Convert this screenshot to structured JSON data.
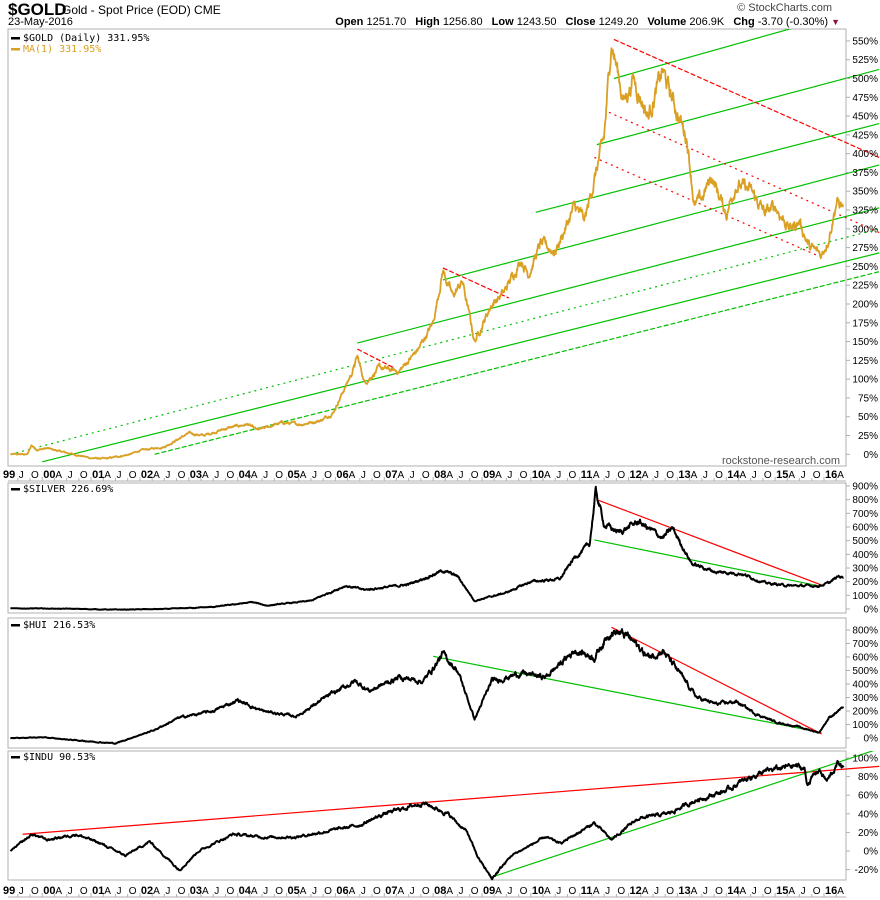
{
  "header": {
    "ticker": "$GOLD",
    "description": "Gold - Spot Price (EOD)",
    "exchange": "CME",
    "date": "23-May-2016",
    "copyright": "© StockCharts.com",
    "open_label": "Open",
    "open": "1251.70",
    "high_label": "High",
    "high": "1256.80",
    "low_label": "Low",
    "low": "1243.50",
    "close_label": "Close",
    "close": "1249.20",
    "volume_label": "Volume",
    "volume": "206.9K",
    "chg_label": "Chg",
    "chg": "-3.70 (-0.30%)",
    "chg_icon": "triangle-down-icon"
  },
  "watermark": "rockstone-research.com",
  "colors": {
    "gold": "#d9a024",
    "black": "#000000",
    "green": "#00c000",
    "red": "#ff0000",
    "border": "#b0b0b0"
  },
  "x_axis": {
    "years": [
      "99",
      "00",
      "01",
      "02",
      "03",
      "04",
      "05",
      "06",
      "07",
      "08",
      "09",
      "10",
      "11",
      "12",
      "13",
      "14",
      "15",
      "16"
    ],
    "first_year": 1999,
    "months": [
      "A",
      "J",
      "O"
    ],
    "range": [
      1999.3,
      2016.45
    ]
  },
  "chart_data": [
    {
      "type": "line",
      "panel": "gold",
      "legend": [
        "$GOLD (Daily) 331.95%",
        "MA(1) 331.95%"
      ],
      "ylabel": "%",
      "ylim": [
        -10,
        570
      ],
      "yticks": [
        "550%",
        "525%",
        "500%",
        "475%",
        "450%",
        "425%",
        "400%",
        "375%",
        "350%",
        "325%",
        "300%",
        "275%",
        "250%",
        "225%",
        "200%",
        "175%",
        "150%",
        "125%",
        "100%",
        "75%",
        "50%",
        "25%",
        "0%"
      ],
      "ytick_values": [
        550,
        525,
        500,
        475,
        450,
        425,
        400,
        375,
        350,
        325,
        300,
        275,
        250,
        225,
        200,
        175,
        150,
        125,
        100,
        75,
        50,
        25,
        0
      ],
      "x": [
        1999.35,
        1999.7,
        1999.78,
        1999.9,
        2000.1,
        2000.5,
        2001.0,
        2001.3,
        2001.8,
        2002.0,
        2002.5,
        2003.0,
        2003.3,
        2003.8,
        2004.2,
        2004.4,
        2004.9,
        2005.3,
        2005.7,
        2005.95,
        2006.35,
        2006.45,
        2006.6,
        2006.9,
        2007.3,
        2007.7,
        2008.0,
        2008.2,
        2008.4,
        2008.6,
        2008.85,
        2009.2,
        2009.45,
        2009.8,
        2009.95,
        2010.2,
        2010.5,
        2010.9,
        2011.1,
        2011.35,
        2011.5,
        2011.65,
        2011.9,
        2012.1,
        2012.4,
        2012.7,
        2012.85,
        2013.2,
        2013.35,
        2013.5,
        2013.7,
        2014.0,
        2014.2,
        2014.5,
        2014.8,
        2015.0,
        2015.3,
        2015.5,
        2015.7,
        2015.95,
        2016.1,
        2016.25,
        2016.4
      ],
      "values": [
        0,
        0,
        12,
        6,
        8,
        2,
        -5,
        -6,
        0,
        5,
        10,
        28,
        25,
        35,
        40,
        32,
        42,
        40,
        45,
        55,
        110,
        130,
        95,
        115,
        110,
        140,
        175,
        245,
        210,
        230,
        150,
        200,
        215,
        260,
        240,
        280,
        270,
        330,
        310,
        380,
        420,
        550,
        470,
        500,
        450,
        510,
        480,
        420,
        330,
        340,
        370,
        320,
        360,
        350,
        320,
        330,
        300,
        310,
        275,
        265,
        290,
        335,
        330
      ]
    },
    {
      "type": "line",
      "panel": "silver",
      "legend": [
        "$SILVER 226.69%"
      ],
      "ylim": [
        -20,
        920
      ],
      "yticks": [
        "900%",
        "800%",
        "700%",
        "600%",
        "500%",
        "400%",
        "300%",
        "200%",
        "100%",
        "0%"
      ],
      "ytick_values": [
        900,
        800,
        700,
        600,
        500,
        400,
        300,
        200,
        100,
        0
      ],
      "x": [
        1999.35,
        2000.5,
        2001.5,
        2002.5,
        2003.5,
        2004.3,
        2004.6,
        2005.5,
        2006.2,
        2006.6,
        2007.5,
        2008.2,
        2008.5,
        2008.85,
        2009.5,
        2010.0,
        2010.6,
        2010.9,
        2011.2,
        2011.33,
        2011.5,
        2011.8,
        2012.2,
        2012.7,
        2012.9,
        2013.3,
        2013.8,
        2014.3,
        2014.8,
        2015.3,
        2015.9,
        2016.1,
        2016.3,
        2016.4
      ],
      "values": [
        5,
        2,
        -5,
        0,
        15,
        50,
        25,
        60,
        170,
        140,
        180,
        280,
        240,
        60,
        120,
        200,
        220,
        380,
        470,
        860,
        620,
        560,
        640,
        520,
        590,
        330,
        270,
        260,
        190,
        170,
        170,
        190,
        240,
        230
      ]
    },
    {
      "type": "line",
      "panel": "hui",
      "legend": [
        "$HUI 216.53%"
      ],
      "ylim": [
        -60,
        850
      ],
      "yticks": [
        "800%",
        "700%",
        "600%",
        "500%",
        "400%",
        "300%",
        "200%",
        "100%",
        "0%"
      ],
      "ytick_values": [
        800,
        700,
        600,
        500,
        400,
        300,
        200,
        100,
        0
      ],
      "x": [
        1999.35,
        2000.0,
        2000.8,
        2001.5,
        2002.3,
        2002.8,
        2003.5,
        2004.0,
        2004.5,
        2005.2,
        2005.8,
        2006.4,
        2006.7,
        2007.3,
        2007.8,
        2008.2,
        2008.5,
        2008.85,
        2009.2,
        2009.8,
        2010.3,
        2010.9,
        2011.3,
        2011.65,
        2012.0,
        2012.4,
        2012.7,
        2013.0,
        2013.4,
        2013.8,
        2014.2,
        2014.6,
        2015.0,
        2015.5,
        2015.9,
        2016.1,
        2016.4
      ],
      "values": [
        0,
        5,
        -20,
        -40,
        60,
        150,
        200,
        280,
        200,
        160,
        300,
        420,
        350,
        450,
        420,
        620,
        500,
        140,
        420,
        480,
        450,
        650,
        600,
        800,
        750,
        600,
        650,
        500,
        300,
        250,
        270,
        180,
        120,
        80,
        40,
        150,
        230
      ]
    },
    {
      "type": "line",
      "panel": "indu",
      "legend": [
        "$INDU 90.53%"
      ],
      "ylim": [
        -35,
        115
      ],
      "yticks": [
        "100%",
        "80%",
        "60%",
        "40%",
        "20%",
        "0%",
        "-20%"
      ],
      "ytick_values": [
        100,
        80,
        60,
        40,
        20,
        0,
        -20
      ],
      "x": [
        1999.35,
        1999.8,
        2000.1,
        2000.7,
        2001.2,
        2001.7,
        2002.2,
        2002.6,
        2002.8,
        2003.2,
        2003.9,
        2004.5,
        2005.2,
        2005.9,
        2006.5,
        2007.0,
        2007.8,
        2008.3,
        2008.7,
        2008.9,
        2009.2,
        2009.6,
        2010.3,
        2010.6,
        2011.3,
        2011.65,
        2012.2,
        2012.8,
        2013.4,
        2014.0,
        2014.5,
        2015.0,
        2015.4,
        2015.6,
        2015.65,
        2015.9,
        2016.05,
        2016.1,
        2016.3,
        2016.4
      ],
      "values": [
        0,
        18,
        12,
        18,
        8,
        -5,
        10,
        -10,
        -20,
        0,
        18,
        15,
        15,
        22,
        28,
        40,
        52,
        40,
        20,
        -5,
        -30,
        -5,
        15,
        8,
        30,
        12,
        35,
        40,
        55,
        65,
        80,
        88,
        92,
        88,
        72,
        88,
        75,
        78,
        95,
        90
      ]
    }
  ],
  "trendlines": [
    {
      "panel": "gold",
      "color": "#00c000",
      "style": "solid",
      "from": [
        2000.0,
        -10
      ],
      "to": [
        2017.13,
        268
      ]
    },
    {
      "panel": "gold",
      "color": "#00c000",
      "style": "dashed",
      "from": [
        2002.3,
        0
      ],
      "to": [
        2017.13,
        243
      ]
    },
    {
      "panel": "gold",
      "color": "#00c000",
      "style": "dotted",
      "from": [
        1999.35,
        0
      ],
      "to": [
        2017.13,
        300
      ]
    },
    {
      "panel": "gold",
      "color": "#00c000",
      "style": "solid",
      "from": [
        2006.45,
        148
      ],
      "to": [
        2017.13,
        328
      ]
    },
    {
      "panel": "gold",
      "color": "#00c000",
      "style": "solid",
      "from": [
        2008.2,
        232
      ],
      "to": [
        2017.13,
        385
      ]
    },
    {
      "panel": "gold",
      "color": "#00c000",
      "style": "solid",
      "from": [
        2010.1,
        322
      ],
      "to": [
        2017.13,
        440
      ]
    },
    {
      "panel": "gold",
      "color": "#00c000",
      "style": "solid",
      "from": [
        2011.35,
        412
      ],
      "to": [
        2017.13,
        512
      ]
    },
    {
      "panel": "gold",
      "color": "#00c000",
      "style": "solid",
      "from": [
        2011.7,
        500
      ],
      "to": [
        2017.0,
        597
      ]
    },
    {
      "panel": "gold",
      "color": "#ff0000",
      "style": "dashed",
      "from": [
        2011.7,
        552
      ],
      "to": [
        2017.13,
        395
      ]
    },
    {
      "panel": "gold",
      "color": "#ff0000",
      "style": "dotted",
      "from": [
        2011.6,
        455
      ],
      "to": [
        2017.13,
        295
      ]
    },
    {
      "panel": "gold",
      "color": "#ff0000",
      "style": "dotted",
      "from": [
        2011.3,
        395
      ],
      "to": [
        2015.95,
        262
      ]
    },
    {
      "panel": "gold",
      "color": "#ff0000",
      "style": "dashed",
      "from": [
        2008.2,
        248
      ],
      "to": [
        2009.55,
        208
      ]
    },
    {
      "panel": "gold",
      "color": "#ff0000",
      "style": "dashed",
      "from": [
        2006.45,
        140
      ],
      "to": [
        2007.2,
        115
      ]
    },
    {
      "panel": "silver",
      "color": "#ff0000",
      "style": "solid",
      "from": [
        2011.35,
        800
      ],
      "to": [
        2015.95,
        175
      ]
    },
    {
      "panel": "silver",
      "color": "#00c000",
      "style": "solid",
      "from": [
        2011.3,
        505
      ],
      "to": [
        2015.95,
        165
      ]
    },
    {
      "panel": "hui",
      "color": "#00c000",
      "style": "solid",
      "from": [
        2008.0,
        605
      ],
      "to": [
        2015.95,
        40
      ]
    },
    {
      "panel": "hui",
      "color": "#ff0000",
      "style": "solid",
      "from": [
        2011.65,
        820
      ],
      "to": [
        2015.95,
        30
      ]
    },
    {
      "panel": "indu",
      "color": "#ff0000",
      "style": "solid",
      "from": [
        1999.6,
        18
      ],
      "to": [
        2017.13,
        91
      ]
    },
    {
      "panel": "indu",
      "color": "#00c000",
      "style": "solid",
      "from": [
        2009.2,
        -28
      ],
      "to": [
        2017.13,
        110
      ]
    }
  ]
}
